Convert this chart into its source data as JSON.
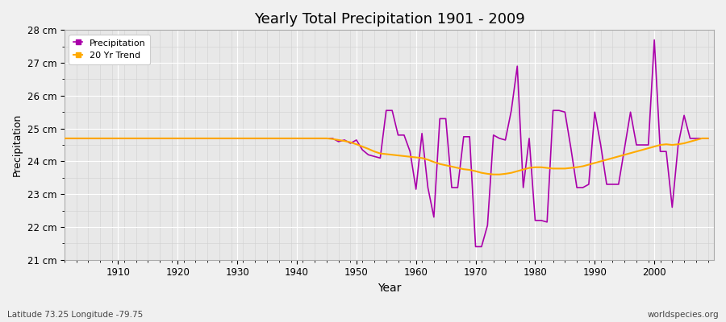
{
  "title": "Yearly Total Precipitation 1901 - 2009",
  "xlabel": "Year",
  "ylabel": "Precipitation",
  "subtitle": "Latitude 73.25 Longitude -79.75",
  "watermark": "worldspecies.org",
  "years": [
    1901,
    1902,
    1903,
    1904,
    1905,
    1906,
    1907,
    1908,
    1909,
    1910,
    1911,
    1912,
    1913,
    1914,
    1915,
    1916,
    1917,
    1918,
    1919,
    1920,
    1921,
    1922,
    1923,
    1924,
    1925,
    1926,
    1927,
    1928,
    1929,
    1930,
    1931,
    1932,
    1933,
    1934,
    1935,
    1936,
    1937,
    1938,
    1939,
    1940,
    1941,
    1942,
    1943,
    1944,
    1945,
    1946,
    1947,
    1948,
    1949,
    1950,
    1951,
    1952,
    1953,
    1954,
    1955,
    1956,
    1957,
    1958,
    1959,
    1960,
    1961,
    1962,
    1963,
    1964,
    1965,
    1966,
    1967,
    1968,
    1969,
    1970,
    1971,
    1972,
    1973,
    1974,
    1975,
    1976,
    1977,
    1978,
    1979,
    1980,
    1981,
    1982,
    1983,
    1984,
    1985,
    1986,
    1987,
    1988,
    1989,
    1990,
    1991,
    1992,
    1993,
    1994,
    1995,
    1996,
    1997,
    1998,
    1999,
    2000,
    2001,
    2002,
    2003,
    2004,
    2005,
    2006,
    2007,
    2008,
    2009
  ],
  "precipitation": [
    24.7,
    24.7,
    24.7,
    24.7,
    24.7,
    24.7,
    24.7,
    24.7,
    24.7,
    24.7,
    24.7,
    24.7,
    24.7,
    24.7,
    24.7,
    24.7,
    24.7,
    24.7,
    24.7,
    24.7,
    24.7,
    24.7,
    24.7,
    24.7,
    24.7,
    24.7,
    24.7,
    24.7,
    24.7,
    24.7,
    24.7,
    24.7,
    24.7,
    24.7,
    24.7,
    24.7,
    24.7,
    24.7,
    24.7,
    24.7,
    24.7,
    24.7,
    24.7,
    24.7,
    24.7,
    24.7,
    24.6,
    24.65,
    24.55,
    24.65,
    24.35,
    24.2,
    24.15,
    24.1,
    25.55,
    25.55,
    24.8,
    24.8,
    24.3,
    23.15,
    24.85,
    23.2,
    22.3,
    25.3,
    25.3,
    23.2,
    23.2,
    24.75,
    24.75,
    21.4,
    21.4,
    22.05,
    24.8,
    24.7,
    24.65,
    25.55,
    26.9,
    23.2,
    24.7,
    22.2,
    22.2,
    22.15,
    25.55,
    25.55,
    25.5,
    24.4,
    23.2,
    23.2,
    23.3,
    25.5,
    24.5,
    23.3,
    23.3,
    23.3,
    24.4,
    25.5,
    24.5,
    24.5,
    24.5,
    27.7,
    24.3,
    24.3,
    22.6,
    24.5,
    25.4,
    24.7,
    24.7,
    24.7,
    24.7
  ],
  "trend": [
    24.7,
    24.7,
    24.7,
    24.7,
    24.7,
    24.7,
    24.7,
    24.7,
    24.7,
    24.7,
    24.7,
    24.7,
    24.7,
    24.7,
    24.7,
    24.7,
    24.7,
    24.7,
    24.7,
    24.7,
    24.7,
    24.7,
    24.7,
    24.7,
    24.7,
    24.7,
    24.7,
    24.7,
    24.7,
    24.7,
    24.7,
    24.7,
    24.7,
    24.7,
    24.7,
    24.7,
    24.7,
    24.7,
    24.7,
    24.7,
    24.7,
    24.7,
    24.7,
    24.7,
    24.7,
    24.68,
    24.65,
    24.62,
    24.58,
    24.52,
    24.45,
    24.38,
    24.3,
    24.24,
    24.22,
    24.2,
    24.18,
    24.16,
    24.14,
    24.12,
    24.1,
    24.05,
    23.98,
    23.92,
    23.88,
    23.84,
    23.8,
    23.76,
    23.74,
    23.7,
    23.65,
    23.62,
    23.6,
    23.6,
    23.62,
    23.65,
    23.7,
    23.75,
    23.8,
    23.82,
    23.82,
    23.8,
    23.78,
    23.78,
    23.78,
    23.8,
    23.82,
    23.85,
    23.9,
    23.95,
    24.0,
    24.05,
    24.1,
    24.15,
    24.2,
    24.25,
    24.3,
    24.35,
    24.4,
    24.45,
    24.5,
    24.52,
    24.5,
    24.52,
    24.55,
    24.6,
    24.65,
    24.7,
    24.7
  ],
  "precip_color": "#aa00aa",
  "trend_color": "#ffaa00",
  "bg_color": "#f0f0f0",
  "plot_bg_color": "#e8e8e8",
  "grid_color_major": "#ffffff",
  "grid_color_minor": "#d8d8d8",
  "ylim": [
    21.0,
    28.0
  ],
  "yticks": [
    21,
    22,
    23,
    24,
    25,
    26,
    27,
    28
  ],
  "ytick_labels": [
    "21 cm",
    "22 cm",
    "23 cm",
    "24 cm",
    "25 cm",
    "26 cm",
    "27 cm",
    "28 cm"
  ],
  "xlim": [
    1901,
    2010
  ],
  "xticks": [
    1910,
    1920,
    1930,
    1940,
    1950,
    1960,
    1970,
    1980,
    1990,
    2000
  ]
}
